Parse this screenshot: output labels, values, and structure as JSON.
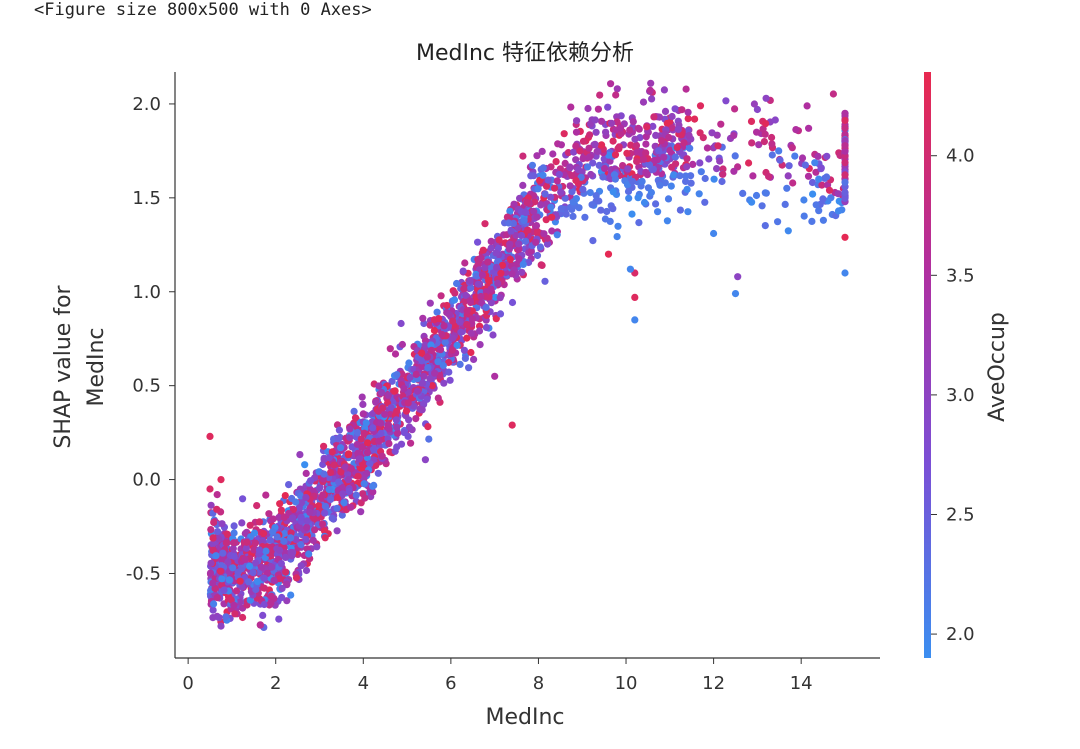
{
  "figure_caption": "<Figure size 800x500 with 0 Axes>",
  "chart_data": {
    "type": "scatter",
    "title": "MedInc 特征依赖分析",
    "xlabel": "MedInc",
    "ylabel_line1": "SHAP value for",
    "ylabel_line2": "MedInc",
    "colorbar_label": "AveOccup",
    "xlim": [
      -0.3,
      15.8
    ],
    "ylim": [
      -0.95,
      2.17
    ],
    "xticks": [
      0,
      2,
      4,
      6,
      8,
      10,
      12,
      14
    ],
    "xtick_labels": [
      "0",
      "2",
      "4",
      "6",
      "8",
      "10",
      "12",
      "14"
    ],
    "yticks": [
      -0.5,
      0.0,
      0.5,
      1.0,
      1.5,
      2.0
    ],
    "ytick_labels": [
      "-0.5",
      "0.0",
      "0.5",
      "1.0",
      "1.5",
      "2.0"
    ],
    "colorbar_range": [
      1.9,
      4.35
    ],
    "colorbar_ticks": [
      2.0,
      2.5,
      3.0,
      3.5,
      4.0
    ],
    "colorbar_tick_labels": [
      "2.0",
      "2.5",
      "3.0",
      "3.5",
      "4.0"
    ],
    "colormap": [
      "#3b8ef0",
      "#7a4fd6",
      "#b02fa0",
      "#e8294f"
    ],
    "grid": false,
    "trend": [
      {
        "x": 0.5,
        "y": -0.45
      },
      {
        "x": 1.0,
        "y": -0.5
      },
      {
        "x": 2.0,
        "y": -0.42
      },
      {
        "x": 2.5,
        "y": -0.28
      },
      {
        "x": 3.0,
        "y": -0.12
      },
      {
        "x": 4.0,
        "y": 0.15
      },
      {
        "x": 5.0,
        "y": 0.45
      },
      {
        "x": 6.0,
        "y": 0.78
      },
      {
        "x": 7.0,
        "y": 1.1
      },
      {
        "x": 8.0,
        "y": 1.45
      },
      {
        "x": 9.0,
        "y": 1.65
      },
      {
        "x": 10.0,
        "y": 1.72
      },
      {
        "x": 11.0,
        "y": 1.75
      },
      {
        "x": 12.0,
        "y": 1.74
      },
      {
        "x": 13.0,
        "y": 1.72
      },
      {
        "x": 14.0,
        "y": 1.68
      },
      {
        "x": 15.0,
        "y": 1.6
      }
    ],
    "outliers": [
      {
        "x": 0.5,
        "y": 0.23,
        "c": 4.2
      },
      {
        "x": 0.5,
        "y": -0.05,
        "c": 4.1
      },
      {
        "x": 0.75,
        "y": 0.0,
        "c": 4.2
      },
      {
        "x": 0.75,
        "y": -0.78,
        "c": 3.0
      },
      {
        "x": 7.4,
        "y": 0.29,
        "c": 4.2
      },
      {
        "x": 7.0,
        "y": 0.55,
        "c": 3.5
      },
      {
        "x": 9.6,
        "y": 1.2,
        "c": 4.3
      },
      {
        "x": 10.2,
        "y": 1.1,
        "c": 4.1
      },
      {
        "x": 10.1,
        "y": 1.12,
        "c": 2.0
      },
      {
        "x": 10.2,
        "y": 0.85,
        "c": 2.0
      },
      {
        "x": 10.2,
        "y": 0.97,
        "c": 4.2
      },
      {
        "x": 12.0,
        "y": 1.31,
        "c": 2.0
      },
      {
        "x": 12.5,
        "y": 0.99,
        "c": 2.0
      },
      {
        "x": 12.55,
        "y": 1.08,
        "c": 3.0
      },
      {
        "x": 15.0,
        "y": 1.1,
        "c": 2.0
      },
      {
        "x": 15.0,
        "y": 1.29,
        "c": 4.3
      },
      {
        "x": 14.4,
        "y": 1.6,
        "c": 2.0
      },
      {
        "x": 13.2,
        "y": 2.03,
        "c": 3.0
      },
      {
        "x": 15.0,
        "y": 1.95,
        "c": 3.5
      },
      {
        "x": 11.7,
        "y": 1.99,
        "c": 4.2
      },
      {
        "x": 10.4,
        "y": 2.01,
        "c": 3.2
      }
    ]
  }
}
